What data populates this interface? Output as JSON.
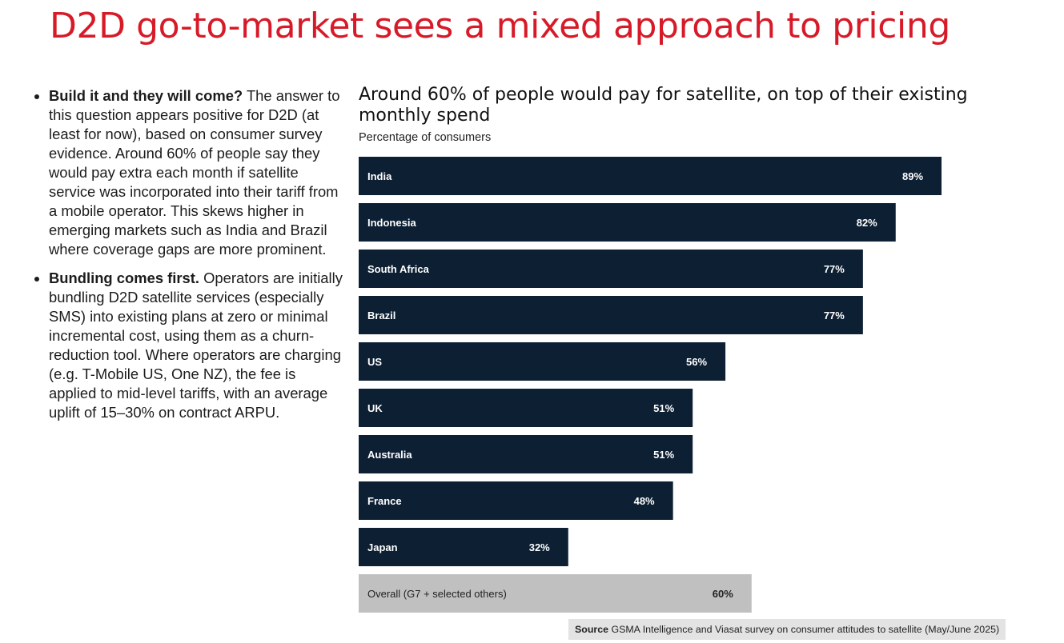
{
  "page": {
    "title": "D2D go-to-market sees a mixed approach to pricing"
  },
  "bullets": [
    {
      "lead": "Build it and they will come?",
      "text": " The answer to this question appears positive for D2D (at least for now), based on consumer survey evidence. Around 60% of people say they would pay extra each month if satellite service was incorporated into their tariff from a mobile operator. This skews higher in emerging markets such as India and Brazil where coverage gaps are more prominent."
    },
    {
      "lead": "Bundling comes first.",
      "text": " Operators are initially bundling D2D satellite services (especially SMS) into existing plans at zero or minimal incremental cost, using them as a churn-reduction tool. Where operators are charging (e.g. T-Mobile US, One NZ), the fee is applied to mid-level tariffs, with an average uplift of 15–30% on contract ARPU."
    }
  ],
  "chart_data": {
    "type": "bar",
    "orientation": "horizontal",
    "title": "Around 60% of people would pay for satellite, on top of their existing monthly spend",
    "subtitle": "Percentage of consumers",
    "categories": [
      "India",
      "Indonesia",
      "South Africa",
      "Brazil",
      "US",
      "UK",
      "Australia",
      "France",
      "Japan",
      "Overall (G7 + selected others)"
    ],
    "values": [
      89,
      82,
      77,
      77,
      56,
      51,
      51,
      48,
      32,
      60
    ],
    "value_labels": [
      "89%",
      "82%",
      "77%",
      "77%",
      "56%",
      "51%",
      "51%",
      "48%",
      "32%",
      "60%"
    ],
    "highlight": [
      false,
      false,
      false,
      false,
      false,
      false,
      false,
      false,
      false,
      true
    ],
    "xlim": [
      0,
      100
    ],
    "grid": false,
    "colors": {
      "bar": "#0c1f33",
      "overall_bar": "#c0c0c0",
      "bar_text": "#ffffff",
      "overall_text": "#222222"
    }
  },
  "source": {
    "label": "Source",
    "text": " GSMA Intelligence and Viasat survey on consumer attitudes to satellite (May/June 2025)"
  }
}
